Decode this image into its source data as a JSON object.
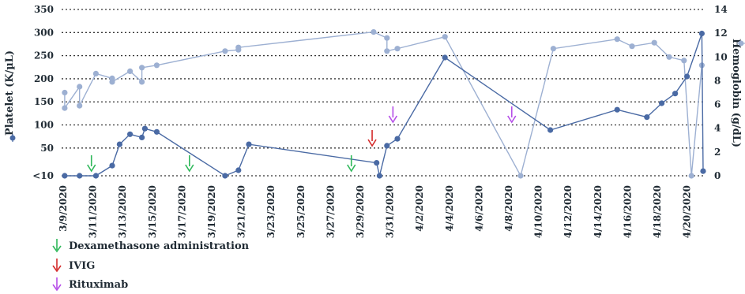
{
  "colors": {
    "platelet": "#4a6aa4",
    "hemoglobin": "#9db0d2",
    "dexamethasone": "#2fb85a",
    "ivig": "#d42a2a",
    "rituximab": "#b54de8",
    "grid": "#333333",
    "text": "#1f2a33"
  },
  "chart_data": {
    "type": "line",
    "title": "",
    "ylabel_left": "Platelet (K/µL)",
    "ylabel_right": "Hemoglobin (g/dL)",
    "xlabel": "",
    "x_range": [
      "3/9/2020",
      "4/22/2020"
    ],
    "xlim_days_from_first_tick": [
      0,
      44.2
    ],
    "ylim_left": [
      -10,
      350
    ],
    "ylim_right": [
      0,
      14
    ],
    "y_ticks_left": [
      {
        "value": -10,
        "label": "<10"
      },
      {
        "value": 50,
        "label": "50"
      },
      {
        "value": 100,
        "label": "100"
      },
      {
        "value": 150,
        "label": "150"
      },
      {
        "value": 200,
        "label": "200"
      },
      {
        "value": 250,
        "label": "250"
      },
      {
        "value": 300,
        "label": "300"
      },
      {
        "value": 350,
        "label": "350"
      }
    ],
    "y_ticks_right": [
      "0",
      "2",
      "4",
      "6",
      "8",
      "10",
      "12",
      "14"
    ],
    "x_tick_labels": [
      "3/9/2020",
      "3/11/2020",
      "3/13/2020",
      "3/15/2020",
      "3/17/2020",
      "3/19/2020",
      "3/21/2020",
      "3/23/2020",
      "3/25/2020",
      "3/27/2020",
      "3/29/2020",
      "3/31/2020",
      "4/2/2020",
      "4/4/2020",
      "4/6/2020",
      "4/8/2020",
      "4/10/2020",
      "4/12/2020",
      "4/14/2020",
      "4/16/2020",
      "4/18/2020",
      "4/20/2020"
    ],
    "grid": "horizontal dotted",
    "series": [
      {
        "name": "Platelet",
        "axis": "left",
        "x": [
          0.1,
          1.1,
          2.2,
          3.3,
          3.8,
          4.5,
          5.3,
          5.5,
          6.3,
          10.9,
          11.8,
          12.5,
          21.1,
          21.3,
          21.8,
          22.5,
          25.7,
          32.8,
          37.3,
          39.3,
          40.3,
          41.2,
          42.0,
          43.0,
          46.8
        ],
        "y": [
          -10,
          -10,
          -10,
          12,
          58,
          80,
          73,
          92,
          85,
          -10,
          2,
          58,
          18,
          -10,
          55,
          70,
          246,
          89,
          133,
          117,
          147,
          168,
          205,
          298,
          0
        ],
        "note": ""
      },
      {
        "name": "Hemoglobin",
        "axis": "right",
        "x": [
          0.1,
          0.1,
          1.1,
          1.1,
          2.2,
          3.3,
          3.3,
          4.5,
          5.3,
          5.3,
          6.3,
          10.9,
          11.8,
          11.8,
          20.9,
          21.8,
          21.8,
          22.5,
          25.7,
          30.8,
          33.0,
          37.3,
          38.3,
          39.8,
          40.8,
          41.8,
          42.3,
          43.0
        ],
        "y": [
          7.0,
          5.7,
          7.5,
          5.9,
          8.6,
          8.2,
          7.9,
          8.8,
          7.9,
          9.1,
          9.3,
          10.5,
          10.6,
          10.8,
          12.1,
          11.6,
          10.5,
          10.7,
          11.7,
          0,
          10.7,
          11.5,
          10.9,
          11.2,
          10.0,
          9.7,
          0,
          9.3
        ]
      }
    ],
    "annotations": [
      {
        "label": "Dexamethasone administration",
        "type": "arrow",
        "dates_days": [
          1.9,
          8.5,
          19.4
        ]
      },
      {
        "label": "IVIG",
        "type": "arrow",
        "dates_days": [
          20.8
        ]
      },
      {
        "label": "Rituximab",
        "type": "arrow",
        "dates_days": [
          22.2,
          30.2
        ]
      }
    ],
    "legend": {
      "placement": "bottom-left",
      "entries": [
        {
          "label": "Dexamethasone administration",
          "color_key": "dexamethasone"
        },
        {
          "label": "IVIG",
          "color_key": "ivig"
        },
        {
          "label": "Rituximab",
          "color_key": "rituximab"
        }
      ]
    }
  }
}
